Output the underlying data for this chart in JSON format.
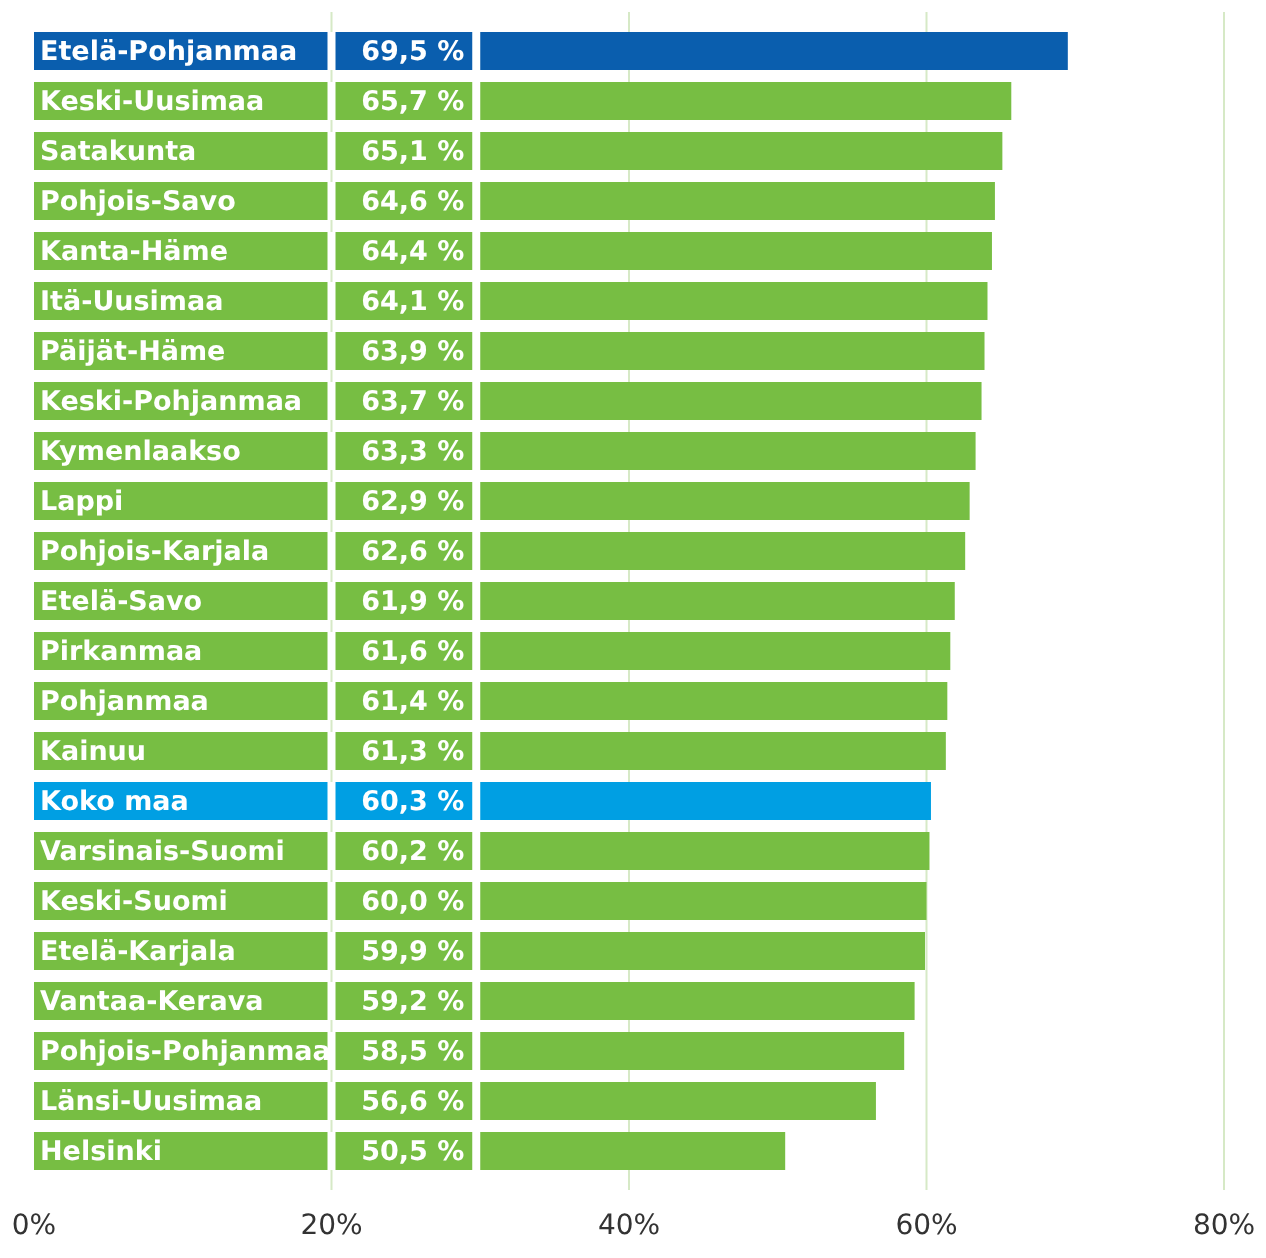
{
  "chart_data": {
    "type": "bar",
    "orientation": "horizontal",
    "categories": [
      "Etelä-Pohjanmaa",
      "Keski-Uusimaa",
      "Satakunta",
      "Pohjois-Savo",
      "Kanta-Häme",
      "Itä-Uusimaa",
      "Päijät-Häme",
      "Keski-Pohjanmaa",
      "Kymenlaakso",
      "Lappi",
      "Pohjois-Karjala",
      "Etelä-Savo",
      "Pirkanmaa",
      "Pohjanmaa",
      "Kainuu",
      "Koko maa",
      "Varsinais-Suomi",
      "Keski-Suomi",
      "Etelä-Karjala",
      "Vantaa-Kerava",
      "Pohjois-Pohjanmaa",
      "Länsi-Uusimaa",
      "Helsinki"
    ],
    "values": [
      69.5,
      65.7,
      65.1,
      64.6,
      64.4,
      64.1,
      63.9,
      63.7,
      63.3,
      62.9,
      62.6,
      61.9,
      61.6,
      61.4,
      61.3,
      60.3,
      60.2,
      60.0,
      59.9,
      59.2,
      58.5,
      56.6,
      50.5
    ],
    "value_labels": [
      "69,5 %",
      "65,7 %",
      "65,1 %",
      "64,6 %",
      "64,4 %",
      "64,1 %",
      "63,9 %",
      "63,7 %",
      "63,3 %",
      "62,9 %",
      "62,6 %",
      "61,9 %",
      "61,6 %",
      "61,4 %",
      "61,3 %",
      "60,3 %",
      "60,2 %",
      "60,0 %",
      "59,9 %",
      "59,2 %",
      "58,5 %",
      "56,6 %",
      "50,5 %"
    ],
    "colors": [
      "#0a5eae",
      "#77be43",
      "#77be43",
      "#77be43",
      "#77be43",
      "#77be43",
      "#77be43",
      "#77be43",
      "#77be43",
      "#77be43",
      "#77be43",
      "#77be43",
      "#77be43",
      "#77be43",
      "#77be43",
      "#009fe3",
      "#77be43",
      "#77be43",
      "#77be43",
      "#77be43",
      "#77be43",
      "#77be43",
      "#77be43"
    ],
    "xlim": [
      0,
      80
    ],
    "xticks": [
      {
        "value": 0,
        "label": "0%"
      },
      {
        "value": 20,
        "label": "20%"
      },
      {
        "value": 40,
        "label": "40%"
      },
      {
        "value": 60,
        "label": "60%"
      },
      {
        "value": 80,
        "label": "80%"
      }
    ],
    "grid": "x"
  }
}
